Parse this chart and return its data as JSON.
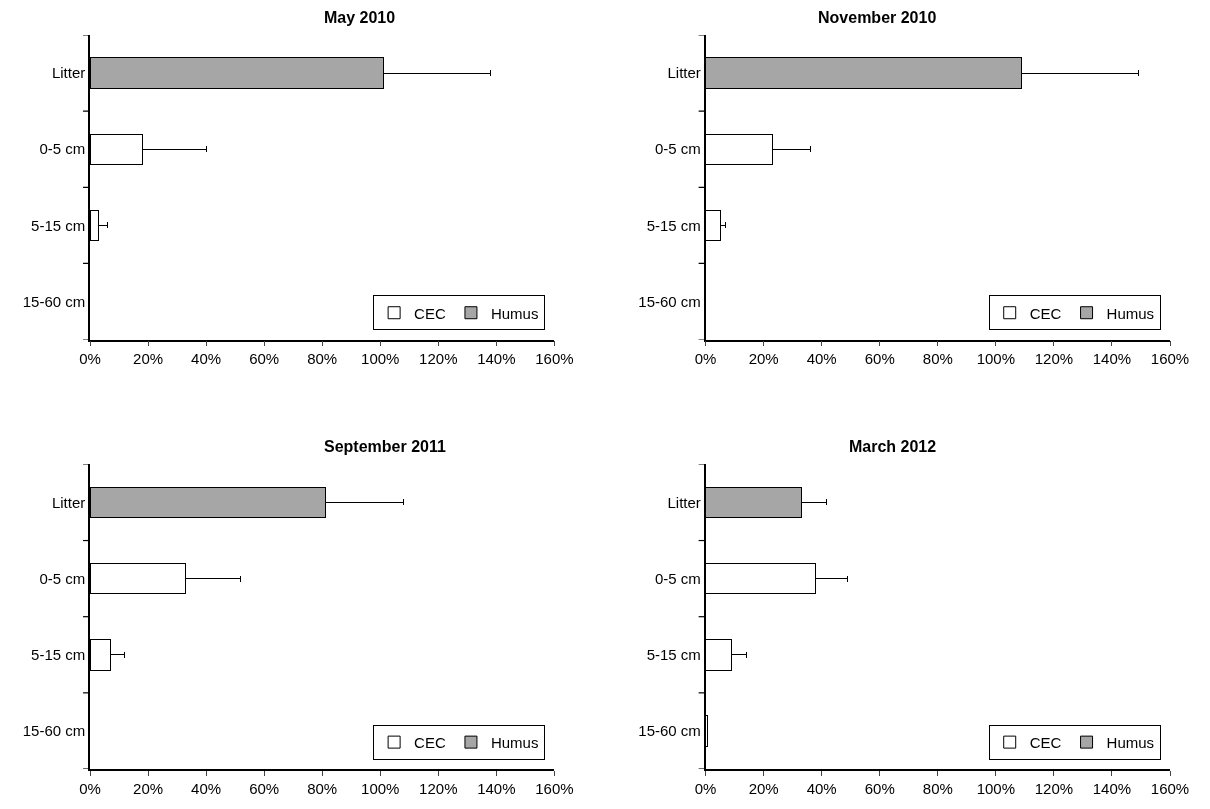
{
  "chart_data": [
    {
      "type": "bar",
      "title": "May 2010",
      "orientation": "horizontal",
      "stacked": true,
      "categories": [
        "Litter",
        "0-5 cm",
        "5-15 cm",
        "15-60 cm"
      ],
      "xlim": [
        0,
        160
      ],
      "xticks": [
        {
          "value": 0,
          "label": "0%"
        },
        {
          "value": 20,
          "label": "20%"
        },
        {
          "value": 40,
          "label": "40%"
        },
        {
          "value": 60,
          "label": "60%"
        },
        {
          "value": 80,
          "label": "80%"
        },
        {
          "value": 100,
          "label": "100%"
        },
        {
          "value": 120,
          "label": "120%"
        },
        {
          "value": 140,
          "label": "140%"
        },
        {
          "value": 160,
          "label": "160%"
        }
      ],
      "grid": false,
      "legend": "bottom right",
      "series": [
        {
          "name": "CEC",
          "color": "#ffffff",
          "values": [
            null,
            18,
            3,
            null
          ],
          "errors": [
            null,
            [
              18,
              40
            ],
            [
              3,
              6
            ],
            null
          ]
        },
        {
          "name": "Humus",
          "color": "#a6a6a6",
          "values": [
            101,
            null,
            null,
            null
          ],
          "errors": [
            [
              101,
              138
            ],
            null,
            null,
            null
          ]
        }
      ]
    },
    {
      "type": "bar",
      "title": "November 2010",
      "orientation": "horizontal",
      "stacked": true,
      "categories": [
        "Litter",
        "0-5 cm",
        "5-15 cm",
        "15-60 cm"
      ],
      "xlim": [
        0,
        160
      ],
      "xticks": [
        {
          "value": 0,
          "label": "0%"
        },
        {
          "value": 20,
          "label": "20%"
        },
        {
          "value": 40,
          "label": "40%"
        },
        {
          "value": 60,
          "label": "60%"
        },
        {
          "value": 80,
          "label": "80%"
        },
        {
          "value": 100,
          "label": "100%"
        },
        {
          "value": 120,
          "label": "120%"
        },
        {
          "value": 140,
          "label": "140%"
        },
        {
          "value": 160,
          "label": "160%"
        }
      ],
      "grid": false,
      "legend": "bottom right",
      "series": [
        {
          "name": "CEC",
          "color": "#ffffff",
          "values": [
            null,
            23,
            5,
            null
          ],
          "errors": [
            null,
            [
              23,
              36
            ],
            [
              5,
              7
            ],
            null
          ]
        },
        {
          "name": "Humus",
          "color": "#a6a6a6",
          "values": [
            109,
            null,
            null,
            null
          ],
          "errors": [
            [
              109,
              149
            ],
            null,
            null,
            null
          ]
        }
      ]
    },
    {
      "type": "bar",
      "title": "September 2011",
      "orientation": "horizontal",
      "stacked": true,
      "categories": [
        "Litter",
        "0-5 cm",
        "5-15 cm",
        "15-60 cm"
      ],
      "xlim": [
        0,
        160
      ],
      "xticks": [
        {
          "value": 0,
          "label": "0%"
        },
        {
          "value": 20,
          "label": "20%"
        },
        {
          "value": 40,
          "label": "40%"
        },
        {
          "value": 60,
          "label": "60%"
        },
        {
          "value": 80,
          "label": "80%"
        },
        {
          "value": 100,
          "label": "100%"
        },
        {
          "value": 120,
          "label": "120%"
        },
        {
          "value": 140,
          "label": "140%"
        },
        {
          "value": 160,
          "label": "160%"
        }
      ],
      "grid": false,
      "legend": "bottom right",
      "series": [
        {
          "name": "CEC",
          "color": "#ffffff",
          "values": [
            null,
            33,
            7,
            null
          ],
          "errors": [
            null,
            [
              33,
              52
            ],
            [
              7,
              12
            ],
            null
          ]
        },
        {
          "name": "Humus",
          "color": "#a6a6a6",
          "values": [
            81,
            null,
            null,
            null
          ],
          "errors": [
            [
              81,
              108
            ],
            null,
            null,
            null
          ]
        }
      ]
    },
    {
      "type": "bar",
      "title": "March 2012",
      "orientation": "horizontal",
      "stacked": true,
      "categories": [
        "Litter",
        "0-5 cm",
        "5-15 cm",
        "15-60 cm"
      ],
      "xlim": [
        0,
        160
      ],
      "xticks": [
        {
          "value": 0,
          "label": "0%"
        },
        {
          "value": 20,
          "label": "20%"
        },
        {
          "value": 40,
          "label": "40%"
        },
        {
          "value": 60,
          "label": "60%"
        },
        {
          "value": 80,
          "label": "80%"
        },
        {
          "value": 100,
          "label": "100%"
        },
        {
          "value": 120,
          "label": "120%"
        },
        {
          "value": 140,
          "label": "140%"
        },
        {
          "value": 160,
          "label": "160%"
        }
      ],
      "grid": false,
      "legend": "bottom right",
      "series": [
        {
          "name": "CEC",
          "color": "#ffffff",
          "values": [
            null,
            38,
            9,
            0.5
          ],
          "errors": [
            null,
            [
              38,
              49
            ],
            [
              9,
              14
            ],
            null
          ]
        },
        {
          "name": "Humus",
          "color": "#a6a6a6",
          "values": [
            33,
            null,
            null,
            null
          ],
          "errors": [
            [
              33,
              41.5
            ],
            null,
            null,
            null
          ]
        }
      ]
    }
  ]
}
